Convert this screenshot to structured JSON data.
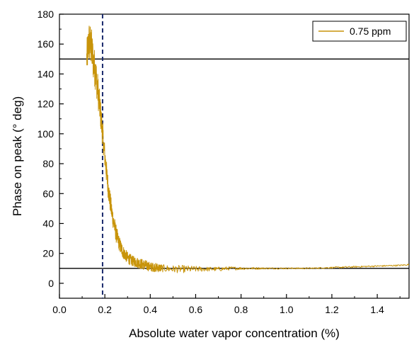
{
  "chart_data": {
    "type": "line",
    "title": "",
    "xlabel": "Absolute water vapor concentration (%)",
    "ylabel": "Phase on peak (° deg)",
    "xlim": [
      0.0,
      1.54
    ],
    "ylim": [
      -10,
      180
    ],
    "x_ticks": [
      0.0,
      0.2,
      0.4,
      0.6,
      0.8,
      1.0,
      1.2,
      1.4
    ],
    "x_tick_labels": [
      "0.0",
      "0.2",
      "0.4",
      "0.6",
      "0.8",
      "1.0",
      "1.2",
      "1.4"
    ],
    "y_ticks": [
      0,
      20,
      40,
      60,
      80,
      100,
      120,
      140,
      160,
      180
    ],
    "y_tick_labels": [
      "0",
      "20",
      "40",
      "60",
      "80",
      "100",
      "120",
      "140",
      "160",
      "180"
    ],
    "grid": false,
    "legend_position": "top-right",
    "series": [
      {
        "name": "0.75 ppm",
        "color": "#c8940a",
        "x": [
          0.12,
          0.13,
          0.14,
          0.15,
          0.16,
          0.17,
          0.18,
          0.19,
          0.2,
          0.21,
          0.22,
          0.23,
          0.24,
          0.25,
          0.26,
          0.27,
          0.28,
          0.29,
          0.3,
          0.32,
          0.34,
          0.36,
          0.38,
          0.4,
          0.43,
          0.46,
          0.5,
          0.55,
          0.6,
          0.65,
          0.7,
          0.75,
          0.8,
          0.85,
          0.9,
          1.0,
          1.1,
          1.2,
          1.3,
          1.4,
          1.5,
          1.54
        ],
        "y": [
          150,
          162,
          158,
          148,
          140,
          128,
          115,
          100,
          85,
          70,
          58,
          48,
          40,
          33,
          28,
          24,
          21,
          19,
          17,
          15,
          14,
          13,
          12,
          11,
          10.5,
          10,
          9.5,
          9.5,
          9.5,
          9.5,
          9.5,
          10,
          10,
          10,
          10,
          10,
          10,
          10.5,
          11,
          11.5,
          12,
          12.5
        ],
        "noise": [
          12,
          14,
          14,
          13,
          12,
          11,
          10,
          9,
          8,
          8,
          7,
          7,
          6,
          6,
          5,
          5,
          4.5,
          4,
          4,
          3.5,
          3.5,
          3.5,
          3.5,
          3,
          3,
          2.5,
          2.5,
          2.5,
          2,
          1.5,
          1.5,
          1.2,
          1,
          0.8,
          0.6,
          0.5,
          0.5,
          0.5,
          0.5,
          0.5,
          0.5,
          0.5
        ]
      }
    ],
    "reference_lines": [
      {
        "orientation": "horizontal",
        "value": 150,
        "style": "solid",
        "color": "#000000"
      },
      {
        "orientation": "horizontal",
        "value": 10,
        "style": "solid",
        "color": "#000000"
      },
      {
        "orientation": "vertical",
        "value": 0.19,
        "style": "dashed",
        "color": "#1a2a6c"
      }
    ]
  }
}
